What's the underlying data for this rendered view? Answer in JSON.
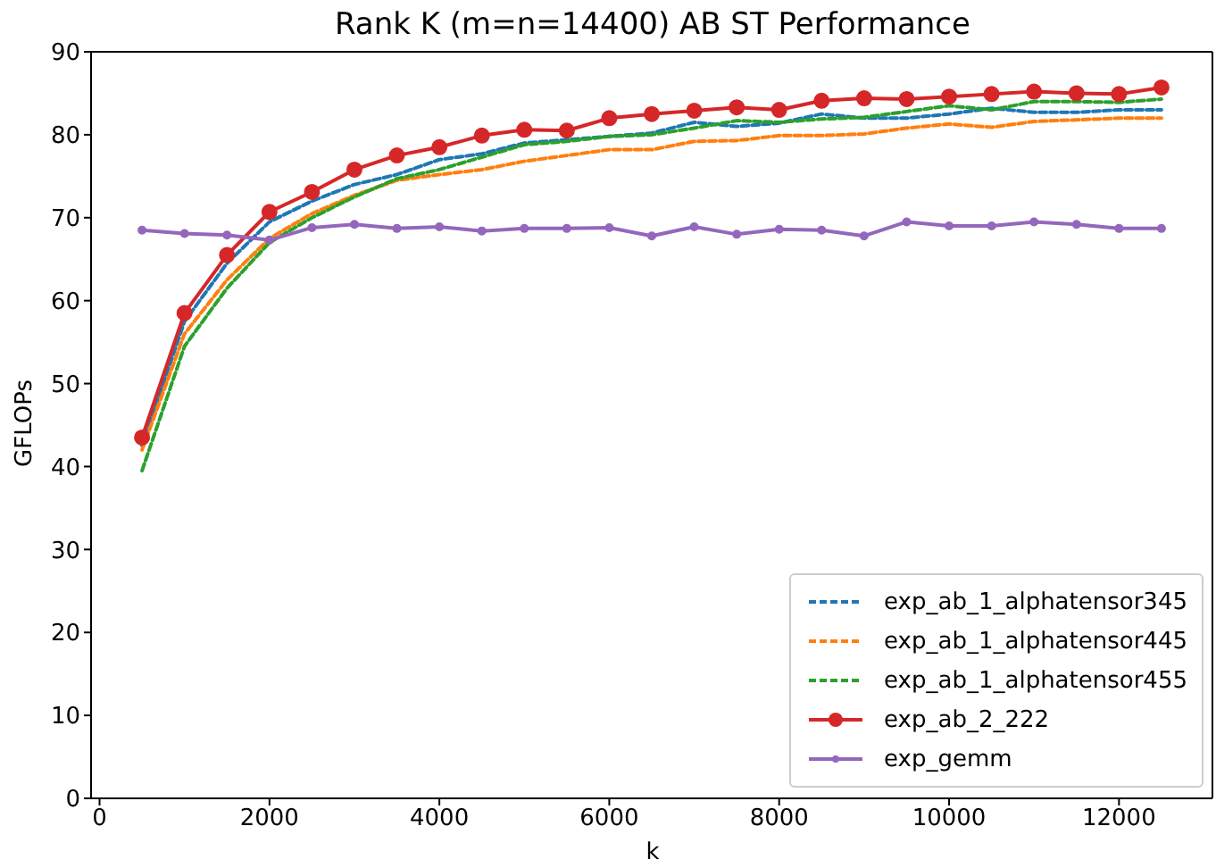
{
  "chart_data": {
    "type": "line",
    "title": "Rank K (m=n=14400) AB ST Performance",
    "xlabel": "k",
    "ylabel": "GFLOPs",
    "x": [
      500,
      1000,
      1500,
      2000,
      2500,
      3000,
      3500,
      4000,
      4500,
      5000,
      5500,
      6000,
      6500,
      7000,
      7500,
      8000,
      8500,
      9000,
      9500,
      10000,
      10500,
      11000,
      11500,
      12000,
      12500
    ],
    "xlim": [
      -100,
      13100
    ],
    "xticks": [
      0,
      2000,
      4000,
      6000,
      8000,
      10000,
      12000
    ],
    "ylim": [
      0,
      90
    ],
    "yticks": [
      0,
      10,
      20,
      30,
      40,
      50,
      60,
      70,
      80,
      90
    ],
    "grid": false,
    "legend": "bottom right",
    "series": [
      {
        "name": "exp_ab_1_alphatensor345",
        "color": "#1f77b4",
        "line_style": "dashed",
        "marker": "none",
        "values": [
          42.5,
          57.5,
          64.5,
          69.5,
          72,
          74,
          75.2,
          77.0,
          77.7,
          79,
          79.4,
          79.8,
          80.2,
          81.5,
          81.0,
          81.4,
          82.5,
          82.0,
          82.0,
          82.5,
          83.2,
          82.7,
          82.7,
          83.0,
          83.0
        ]
      },
      {
        "name": "exp_ab_1_alphatensor445",
        "color": "#ff7f0e",
        "line_style": "dashed",
        "marker": "none",
        "values": [
          42,
          56,
          62.5,
          67.5,
          70.5,
          72.7,
          74.5,
          75.2,
          75.8,
          76.8,
          77.5,
          78.2,
          78.2,
          79.2,
          79.3,
          79.9,
          79.9,
          80.1,
          80.8,
          81.3,
          80.9,
          81.6,
          81.8,
          82.0,
          82.0
        ]
      },
      {
        "name": "exp_ab_1_alphatensor455",
        "color": "#2ca02c",
        "line_style": "dashed",
        "marker": "none",
        "values": [
          39.5,
          54.5,
          61.5,
          67.0,
          70,
          72.5,
          74.7,
          75.8,
          77.3,
          78.8,
          79.2,
          79.8,
          80.0,
          80.8,
          81.7,
          81.5,
          81.9,
          82.1,
          82.8,
          83.5,
          83.0,
          84.0,
          84.0,
          83.9,
          84.3
        ]
      },
      {
        "name": "exp_ab_2_222",
        "color": "#d62728",
        "line_style": "solid",
        "marker": "circle",
        "values": [
          43.5,
          58.5,
          65.5,
          70.7,
          73.1,
          75.8,
          77.5,
          78.5,
          79.9,
          80.6,
          80.5,
          82.0,
          82.5,
          82.9,
          83.3,
          83.0,
          84.1,
          84.4,
          84.3,
          84.6,
          84.9,
          85.2,
          85.0,
          84.9,
          85.7
        ]
      },
      {
        "name": "exp_gemm",
        "color": "#9467bd",
        "line_style": "solid",
        "marker": "circle",
        "values": [
          68.5,
          68.1,
          67.9,
          67.3,
          68.8,
          69.2,
          68.7,
          68.9,
          68.4,
          68.7,
          68.7,
          68.8,
          67.8,
          68.9,
          68.0,
          68.6,
          68.5,
          67.8,
          69.5,
          69.0,
          69.0,
          69.5,
          69.2,
          68.7,
          68.7
        ]
      }
    ]
  }
}
